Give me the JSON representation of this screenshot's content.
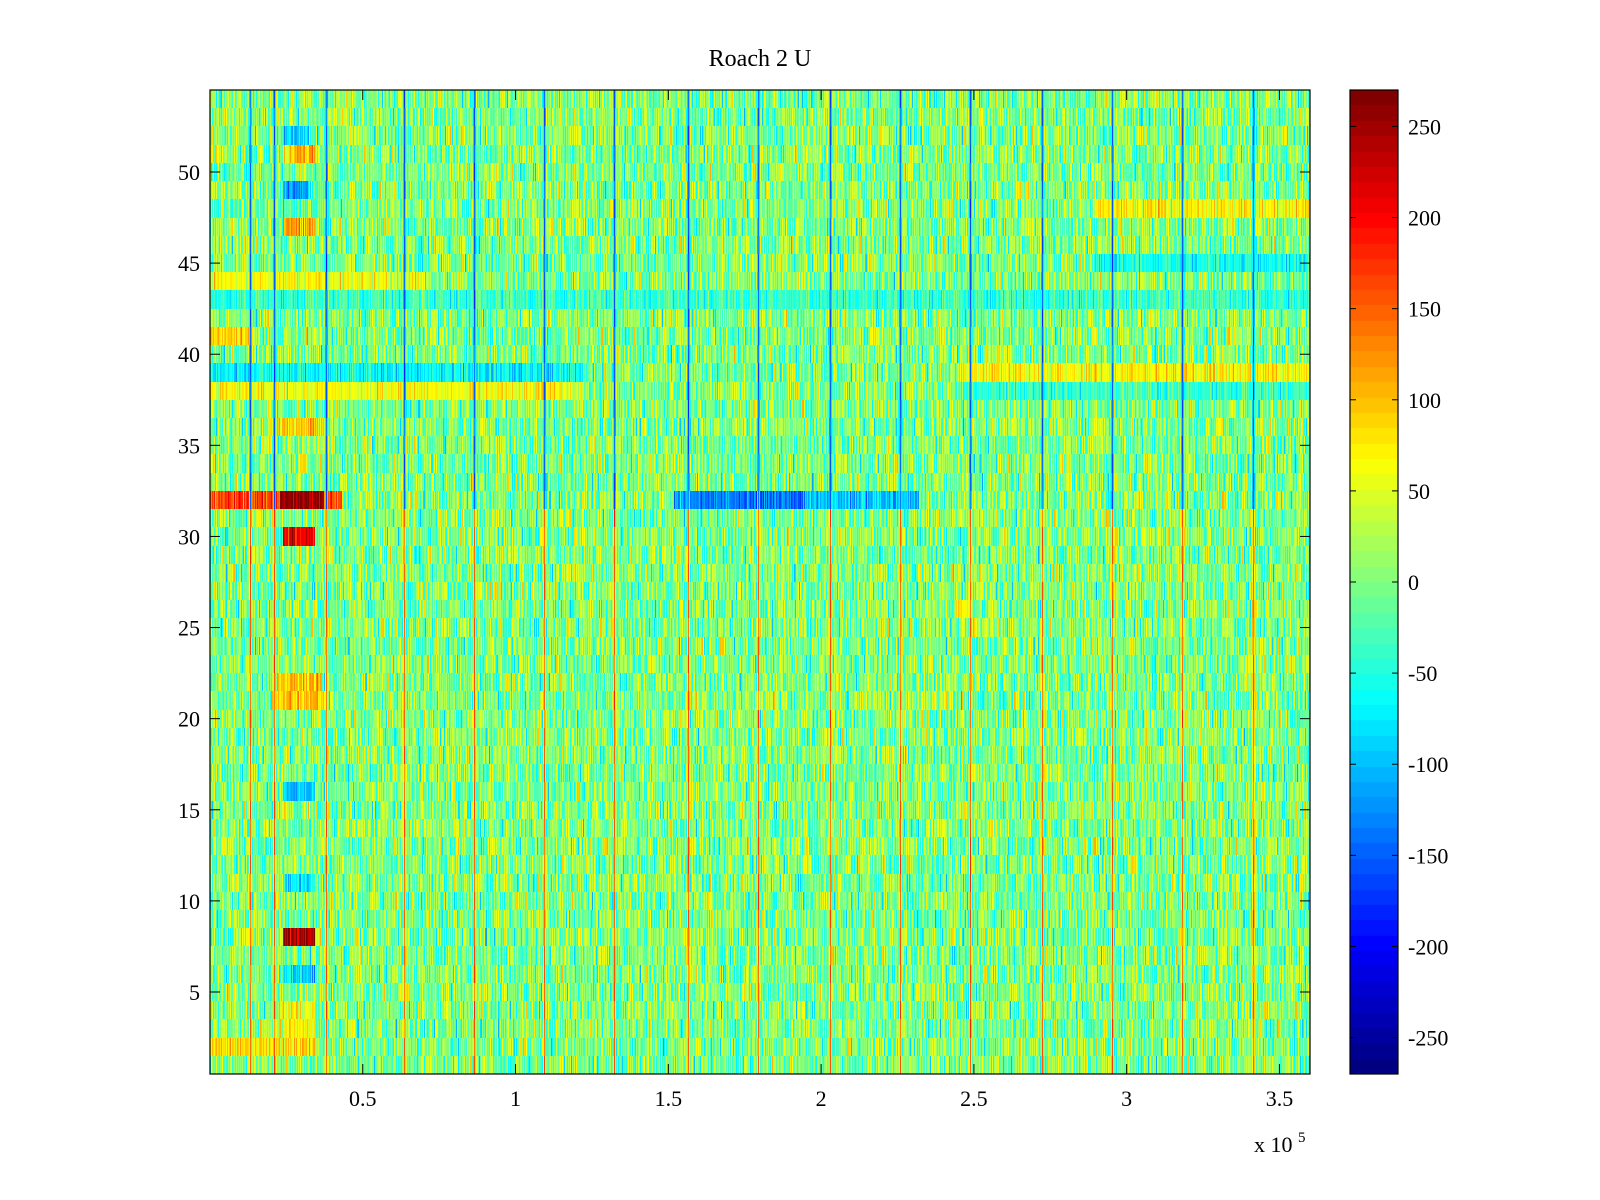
{
  "chart_data": {
    "type": "heatmap",
    "title": "Roach 2 U",
    "xlabel": "",
    "ylabel": "",
    "x_exponent_label": "x 10",
    "x_exponent_power": "5",
    "xlim": [
      0,
      3.6
    ],
    "ylim": [
      0.5,
      54.5
    ],
    "x_ticks": [
      0.5,
      1,
      1.5,
      2,
      2.5,
      3,
      3.5
    ],
    "x_tick_labels": [
      "0.5",
      "1",
      "1.5",
      "2",
      "2.5",
      "3",
      "3.5"
    ],
    "y_ticks": [
      5,
      10,
      15,
      20,
      25,
      30,
      35,
      40,
      45,
      50
    ],
    "y_tick_labels": [
      "5",
      "10",
      "15",
      "20",
      "25",
      "30",
      "35",
      "40",
      "45",
      "50"
    ],
    "colormap": "jet",
    "color_range": [
      -270,
      270
    ],
    "colorbar_ticks": [
      250,
      200,
      150,
      100,
      50,
      0,
      -50,
      -100,
      -150,
      -200,
      -250
    ],
    "colorbar_tick_labels": [
      "250",
      "200",
      "150",
      "100",
      "50",
      "0",
      "-50",
      "-100",
      "-150",
      "-200",
      "-250"
    ],
    "rows": 54,
    "baseline_value": 0,
    "noise_amplitude": 40,
    "periodic_spike_x": [
      0.132,
      0.21,
      0.38,
      0.635,
      0.865,
      1.095,
      1.325,
      1.565,
      1.795,
      2.03,
      2.26,
      2.49,
      2.725,
      2.955,
      3.185,
      3.415
    ],
    "spike_rows_negative_above": 31,
    "spike_value_negative": -150,
    "spike_value_positive": 150,
    "features": [
      {
        "row": 32,
        "x_start": 0.0,
        "x_end": 0.43,
        "value": 160
      },
      {
        "row": 32,
        "x_start": 0.23,
        "x_end": 0.37,
        "value": 255
      },
      {
        "row": 30,
        "x_start": 0.24,
        "x_end": 0.34,
        "value": 210
      },
      {
        "row": 8,
        "x_start": 0.24,
        "x_end": 0.34,
        "value": 250
      },
      {
        "row": 32,
        "x_start": 1.52,
        "x_end": 2.32,
        "value": -100
      },
      {
        "row": 32,
        "x_start": 1.57,
        "x_end": 1.95,
        "value": -140
      },
      {
        "row": 39,
        "x_start": 0.0,
        "x_end": 1.22,
        "value": -70
      },
      {
        "row": 38,
        "x_start": 0.0,
        "x_end": 1.22,
        "value": 60
      },
      {
        "row": 39,
        "x_start": 2.45,
        "x_end": 3.6,
        "value": 70
      },
      {
        "row": 38,
        "x_start": 2.45,
        "x_end": 3.6,
        "value": -40
      },
      {
        "row": 49,
        "x_start": 0.24,
        "x_end": 0.32,
        "value": -120
      },
      {
        "row": 52,
        "x_start": 0.24,
        "x_end": 0.32,
        "value": -90
      },
      {
        "row": 51,
        "x_start": 0.24,
        "x_end": 0.34,
        "value": 100
      },
      {
        "row": 47,
        "x_start": 0.24,
        "x_end": 0.34,
        "value": 110
      },
      {
        "row": 36,
        "x_start": 0.22,
        "x_end": 0.36,
        "value": 95
      },
      {
        "row": 21,
        "x_start": 0.2,
        "x_end": 0.38,
        "value": 100
      },
      {
        "row": 22,
        "x_start": 0.22,
        "x_end": 0.36,
        "value": 90
      },
      {
        "row": 16,
        "x_start": 0.24,
        "x_end": 0.34,
        "value": -100
      },
      {
        "row": 11,
        "x_start": 0.24,
        "x_end": 0.34,
        "value": -80
      },
      {
        "row": 6,
        "x_start": 0.24,
        "x_end": 0.34,
        "value": -90
      },
      {
        "row": 2,
        "x_start": 0.0,
        "x_end": 0.34,
        "value": 80
      },
      {
        "row": 3,
        "x_start": 0.24,
        "x_end": 0.34,
        "value": 70
      },
      {
        "row": 4,
        "x_start": 0.24,
        "x_end": 0.34,
        "value": 70
      },
      {
        "row": 44,
        "x_start": 0.0,
        "x_end": 0.7,
        "value": 60
      },
      {
        "row": 45,
        "x_start": 2.9,
        "x_end": 3.6,
        "value": -60
      },
      {
        "row": 48,
        "x_start": 2.9,
        "x_end": 3.6,
        "value": 70
      },
      {
        "row": 43,
        "x_start": 0.0,
        "x_end": 3.6,
        "value": -40
      },
      {
        "row": 41,
        "x_start": 0.0,
        "x_end": 0.14,
        "value": 90
      }
    ]
  }
}
